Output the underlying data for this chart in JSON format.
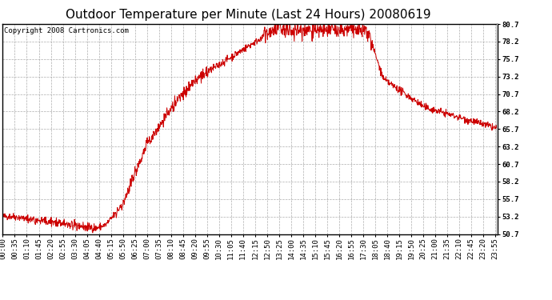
{
  "title": "Outdoor Temperature per Minute (Last 24 Hours) 20080619",
  "copyright_text": "Copyright 2008 Cartronics.com",
  "line_color": "#cc0000",
  "background_color": "#ffffff",
  "plot_bg_color": "#ffffff",
  "grid_color": "#999999",
  "ylim": [
    50.7,
    80.7
  ],
  "yticks": [
    50.7,
    53.2,
    55.7,
    58.2,
    60.7,
    63.2,
    65.7,
    68.2,
    70.7,
    73.2,
    75.7,
    78.2,
    80.7
  ],
  "title_fontsize": 11,
  "tick_fontsize": 6.5,
  "copyright_fontsize": 6.5,
  "x_labels": [
    "00:00",
    "00:35",
    "01:10",
    "01:45",
    "02:20",
    "02:55",
    "03:30",
    "04:05",
    "04:40",
    "05:15",
    "05:50",
    "06:25",
    "07:00",
    "07:35",
    "08:10",
    "08:45",
    "09:20",
    "09:55",
    "10:30",
    "11:05",
    "11:40",
    "12:15",
    "12:50",
    "13:25",
    "14:00",
    "14:35",
    "15:10",
    "15:45",
    "16:20",
    "16:55",
    "17:30",
    "18:05",
    "18:40",
    "19:15",
    "19:50",
    "20:25",
    "21:00",
    "21:35",
    "22:10",
    "22:45",
    "23:20",
    "23:55"
  ]
}
